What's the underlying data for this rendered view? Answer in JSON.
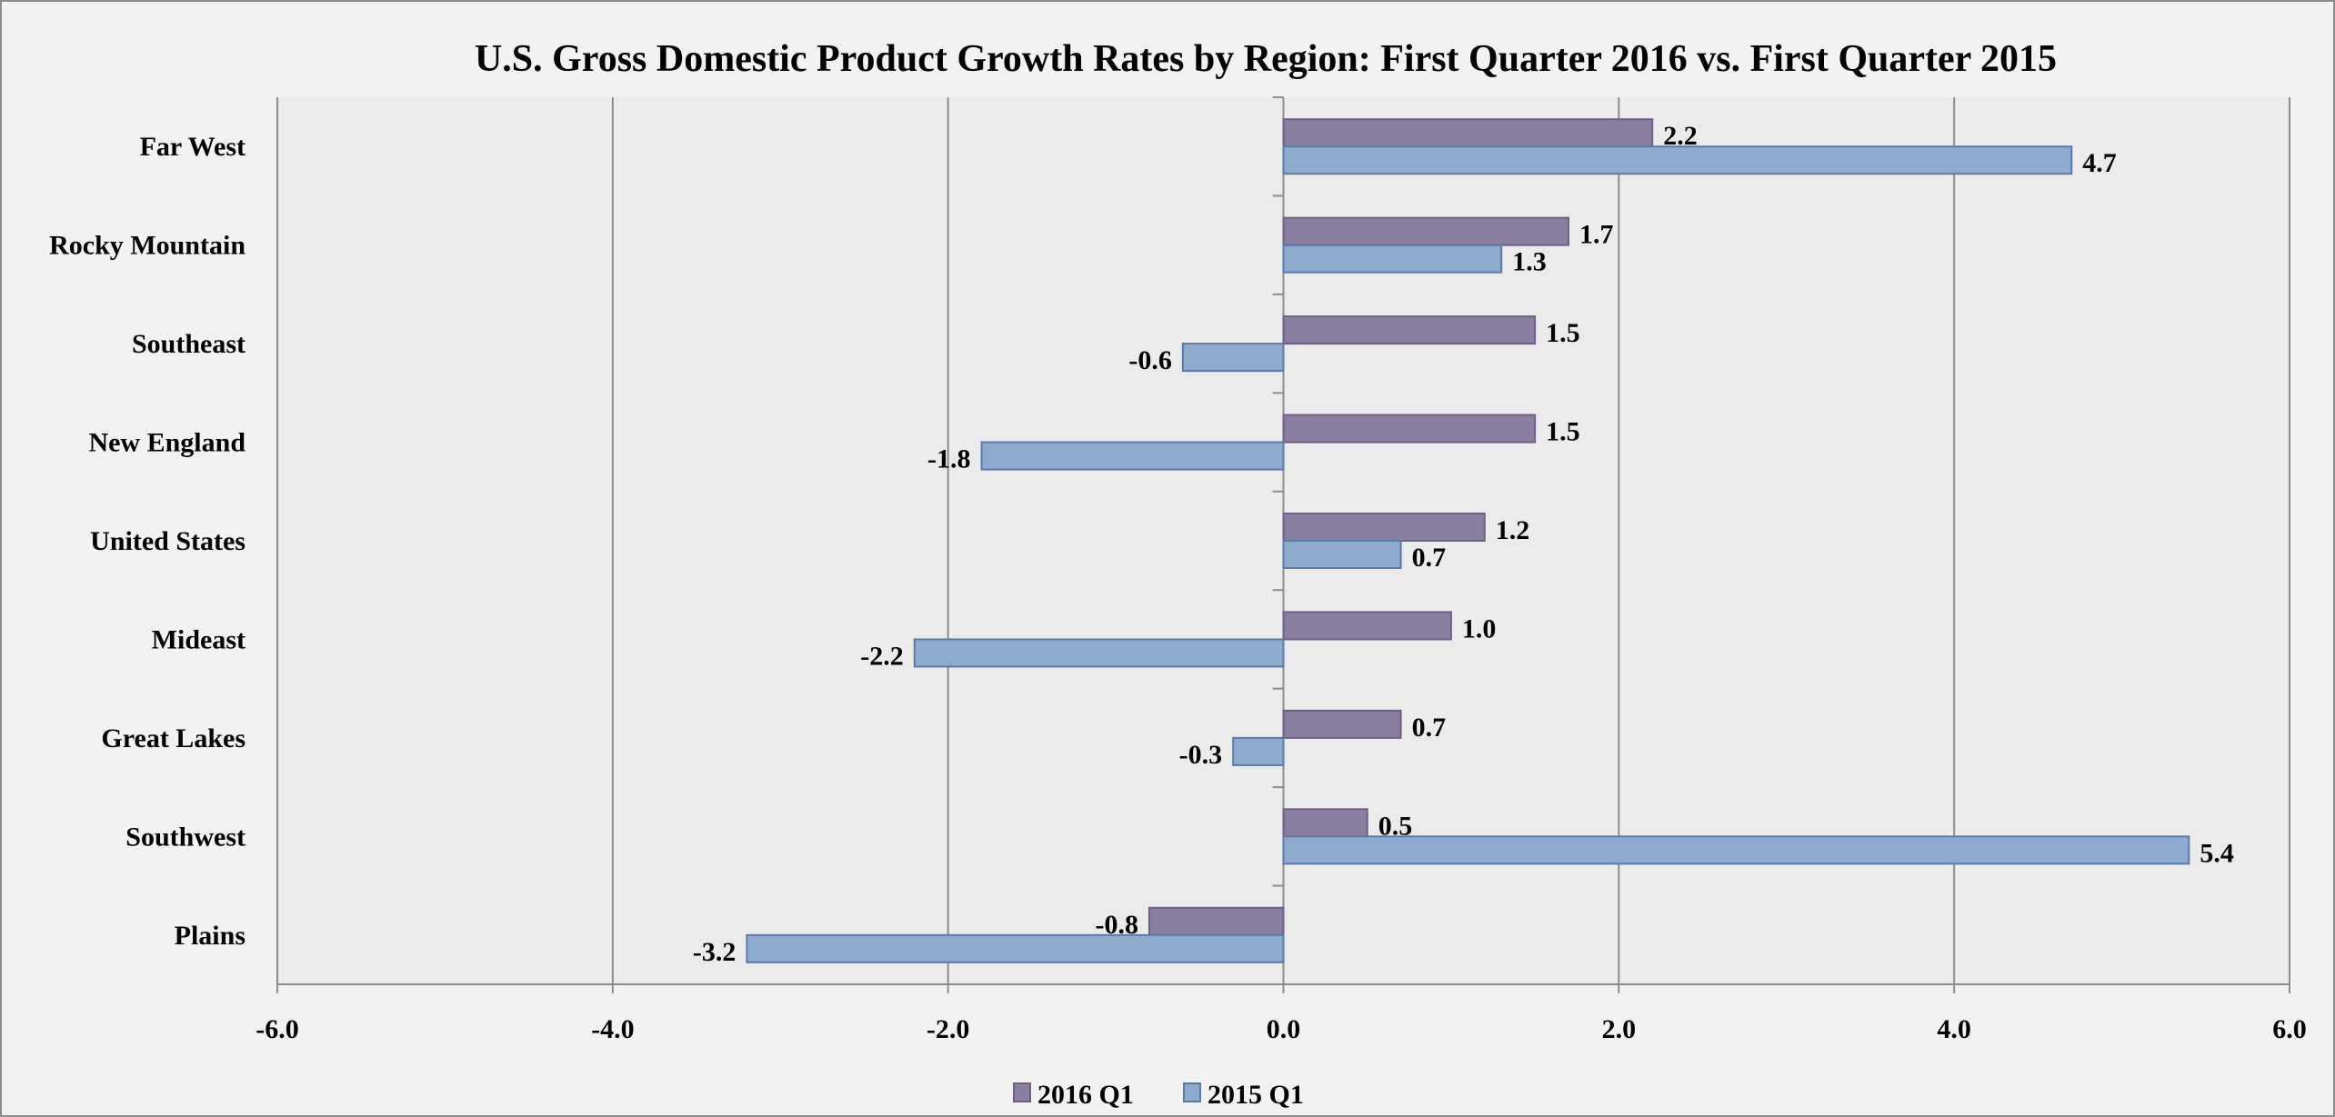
{
  "chart_data": {
    "type": "bar",
    "orientation": "horizontal",
    "title": "U.S. Gross Domestic Product Growth Rates by Region: First Quarter 2016 vs. First Quarter 2015",
    "xlabel": "",
    "ylabel": "",
    "categories": [
      "Far West",
      "Rocky Mountain",
      "Southeast",
      "New England",
      "United States",
      "Mideast",
      "Great Lakes",
      "Southwest",
      "Plains"
    ],
    "series": [
      {
        "name": "2016 Q1",
        "color": "#8b7fa1",
        "values": [
          2.2,
          1.7,
          1.5,
          1.5,
          1.2,
          1.0,
          0.7,
          0.5,
          -0.8
        ]
      },
      {
        "name": "2015 Q1",
        "color": "#8eaacf",
        "values": [
          4.7,
          1.3,
          -0.6,
          -1.8,
          0.7,
          -2.2,
          -0.3,
          5.4,
          -3.2
        ]
      }
    ],
    "xlim": [
      -6,
      6
    ],
    "xticks": [
      "-6.0",
      "-4.0",
      "-2.0",
      "0.0",
      "2.0",
      "4.0",
      "6.0"
    ],
    "grid": "vertical",
    "legend": "bottom",
    "data_labels": true
  }
}
